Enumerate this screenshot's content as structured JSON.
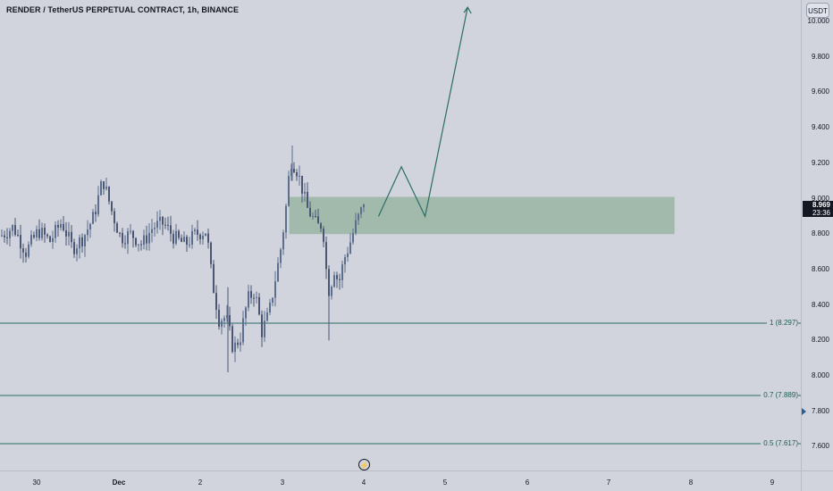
{
  "header": {
    "title": "RENDER / TetherUS PERPETUAL CONTRACT, 1h, BINANCE",
    "currency_button": "USDT"
  },
  "price_tag": {
    "price": "8.969",
    "countdown": "23:36"
  },
  "chart_data": {
    "type": "candlestick",
    "title": "RENDER / TetherUS PERPETUAL CONTRACT, 1h, BINANCE",
    "y_axis": {
      "ticks": [
        "10.000",
        "9.800",
        "9.600",
        "9.400",
        "9.200",
        "9.000",
        "8.800",
        "8.600",
        "8.400",
        "8.200",
        "8.000",
        "7.800",
        "7.600"
      ],
      "range": [
        7.49,
        10.1
      ]
    },
    "x_axis": {
      "ticks": [
        "30",
        "Dec",
        "2",
        "3",
        "4",
        "5",
        "6",
        "7",
        "8",
        "9"
      ]
    },
    "candle_anchors": [
      [
        0,
        8.79
      ],
      [
        14,
        8.84
      ],
      [
        28,
        8.7
      ],
      [
        42,
        8.82
      ],
      [
        55,
        8.76
      ],
      [
        68,
        8.87
      ],
      [
        80,
        8.72
      ],
      [
        92,
        8.78
      ],
      [
        104,
        8.9
      ],
      [
        114,
        9.11
      ],
      [
        124,
        8.93
      ],
      [
        134,
        8.78
      ],
      [
        146,
        8.8
      ],
      [
        158,
        8.74
      ],
      [
        170,
        8.84
      ],
      [
        182,
        8.86
      ],
      [
        194,
        8.78
      ],
      [
        206,
        8.74
      ],
      [
        218,
        8.8
      ],
      [
        230,
        8.82
      ],
      [
        236,
        8.55
      ],
      [
        244,
        8.32
      ],
      [
        252,
        8.33
      ],
      [
        260,
        8.15
      ],
      [
        268,
        8.22
      ],
      [
        276,
        8.43
      ],
      [
        284,
        8.48
      ],
      [
        292,
        8.25
      ],
      [
        300,
        8.35
      ],
      [
        306,
        8.52
      ],
      [
        312,
        8.68
      ],
      [
        318,
        8.9
      ],
      [
        324,
        9.22
      ],
      [
        330,
        9.18
      ],
      [
        336,
        9.08
      ],
      [
        342,
        8.95
      ],
      [
        348,
        8.9
      ],
      [
        354,
        8.84
      ],
      [
        360,
        8.86
      ],
      [
        364,
        8.6
      ],
      [
        368,
        8.45
      ],
      [
        372,
        8.62
      ],
      [
        378,
        8.52
      ],
      [
        384,
        8.66
      ],
      [
        390,
        8.74
      ],
      [
        396,
        8.84
      ],
      [
        402,
        8.92
      ],
      [
        408,
        8.97
      ]
    ],
    "last_price": 8.969,
    "zone": {
      "y_top": 9.01,
      "y_bottom": 8.8,
      "x_start": 3.0,
      "x_end": 7.8,
      "color": "#9ab5a3"
    },
    "projection_path": [
      [
        4.18,
        8.9
      ],
      [
        4.46,
        9.18
      ],
      [
        4.75,
        8.9
      ],
      [
        5.27,
        10.08
      ]
    ],
    "fib_levels": [
      {
        "label": "1 (8.297)",
        "value": 8.297
      },
      {
        "label": "0.7 (7.889)",
        "value": 7.889
      },
      {
        "label": "0.5 (7.617)",
        "value": 7.617
      }
    ],
    "colors": {
      "up": "#5b6e8e",
      "down": "#4a5672",
      "fib_line": "#2b6d66",
      "projection": "#2b6d66",
      "tag_bg": "#131722"
    }
  }
}
